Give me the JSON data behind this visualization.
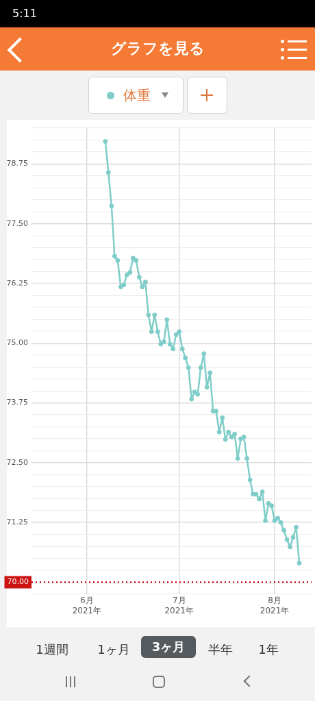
{
  "chart_data": {
    "type": "line",
    "title": "グラフを見る",
    "x": [
      "2021-06-07",
      "2021-06-08",
      "2021-06-09",
      "2021-06-10",
      "2021-06-11",
      "2021-06-12",
      "2021-06-13",
      "2021-06-14",
      "2021-06-15",
      "2021-06-16",
      "2021-06-17",
      "2021-06-18",
      "2021-06-19",
      "2021-06-20",
      "2021-06-21",
      "2021-06-22",
      "2021-06-23",
      "2021-06-24",
      "2021-06-25",
      "2021-06-26",
      "2021-06-27",
      "2021-06-28",
      "2021-06-29",
      "2021-06-30",
      "2021-07-01",
      "2021-07-02",
      "2021-07-03",
      "2021-07-04",
      "2021-07-05",
      "2021-07-06",
      "2021-07-07",
      "2021-07-08",
      "2021-07-09",
      "2021-07-10",
      "2021-07-11",
      "2021-07-12",
      "2021-07-13",
      "2021-07-14",
      "2021-07-15",
      "2021-07-16",
      "2021-07-17",
      "2021-07-18",
      "2021-07-19",
      "2021-07-20",
      "2021-07-21",
      "2021-07-22",
      "2021-07-23",
      "2021-07-24",
      "2021-07-25",
      "2021-07-26",
      "2021-07-27",
      "2021-07-28",
      "2021-07-29",
      "2021-07-30",
      "2021-07-31",
      "2021-08-01",
      "2021-08-02",
      "2021-08-03",
      "2021-08-04",
      "2021-08-05",
      "2021-08-06",
      "2021-08-07",
      "2021-08-08",
      "2021-08-09"
    ],
    "series": [
      {
        "name": "体重",
        "color": "#7fcdc9",
        "values": [
          79.22,
          78.57,
          77.87,
          76.82,
          76.73,
          76.18,
          76.22,
          76.43,
          76.48,
          76.78,
          76.73,
          76.38,
          76.18,
          76.28,
          75.59,
          75.24,
          75.59,
          75.24,
          74.98,
          75.03,
          75.49,
          74.98,
          74.88,
          75.18,
          75.24,
          74.88,
          74.69,
          74.49,
          73.83,
          73.98,
          73.93,
          74.49,
          74.78,
          74.08,
          74.38,
          73.58,
          73.58,
          73.14,
          73.44,
          72.99,
          73.14,
          73.04,
          73.1,
          72.59,
          73.0,
          73.04,
          72.59,
          72.14,
          71.84,
          71.84,
          71.74,
          71.89,
          71.29,
          71.65,
          71.6,
          71.29,
          71.34,
          71.25,
          71.09,
          70.89,
          70.74,
          70.94,
          71.15,
          70.4
        ]
      }
    ],
    "xlim": [
      "2021-05-14",
      "2021-08-13"
    ],
    "xticks": [
      {
        "value": "2021-06-01",
        "label": "6月\n2021年"
      },
      {
        "value": "2021-07-01",
        "label": "7月\n2021年"
      },
      {
        "value": "2021-08-01",
        "label": "8月\n2021年"
      }
    ],
    "ylim": [
      69.75,
      79.5
    ],
    "yticks": [
      {
        "value": 69.75,
        "label": null
      },
      {
        "value": 70,
        "label": null
      },
      {
        "value": 70.25,
        "label": null
      },
      {
        "value": 70.5,
        "label": null
      },
      {
        "value": 70.75,
        "label": null
      },
      {
        "value": 71,
        "label": null
      },
      {
        "value": 71.25,
        "label": "71.25"
      },
      {
        "value": 71.5,
        "label": null
      },
      {
        "value": 71.75,
        "label": null
      },
      {
        "value": 72,
        "label": null
      },
      {
        "value": 72.25,
        "label": null
      },
      {
        "value": 72.5,
        "label": "72.50"
      },
      {
        "value": 72.75,
        "label": null
      },
      {
        "value": 73,
        "label": null
      },
      {
        "value": 73.25,
        "label": null
      },
      {
        "value": 73.5,
        "label": null
      },
      {
        "value": 73.75,
        "label": "73.75"
      },
      {
        "value": 74,
        "label": null
      },
      {
        "value": 74.25,
        "label": null
      },
      {
        "value": 74.5,
        "label": null
      },
      {
        "value": 74.75,
        "label": null
      },
      {
        "value": 75,
        "label": "75.00"
      },
      {
        "value": 75.25,
        "label": null
      },
      {
        "value": 75.5,
        "label": null
      },
      {
        "value": 75.75,
        "label": null
      },
      {
        "value": 76,
        "label": null
      },
      {
        "value": 76.25,
        "label": "76.25"
      },
      {
        "value": 76.5,
        "label": null
      },
      {
        "value": 76.75,
        "label": null
      },
      {
        "value": 77,
        "label": null
      },
      {
        "value": 77.25,
        "label": null
      },
      {
        "value": 77.5,
        "label": "77.50"
      },
      {
        "value": 77.75,
        "label": null
      },
      {
        "value": 78,
        "label": null
      },
      {
        "value": 78.25,
        "label": null
      },
      {
        "value": 78.5,
        "label": null
      },
      {
        "value": 78.75,
        "label": "78.75"
      },
      {
        "value": 79,
        "label": null
      },
      {
        "value": 79.25,
        "label": null
      },
      {
        "value": 79.5,
        "label": null
      }
    ],
    "ref_lines": [
      {
        "axis": "y",
        "value": 70,
        "label": "70.00",
        "color": "#cc1111",
        "line_style": "dotted"
      }
    ],
    "annotations": [
      "5:11",
      "1週間",
      "1ヶ月",
      "3ヶ月",
      "半年",
      "1年"
    ],
    "grid": true,
    "legend": "top",
    "marker": "circle",
    "line_style": "solid"
  }
}
